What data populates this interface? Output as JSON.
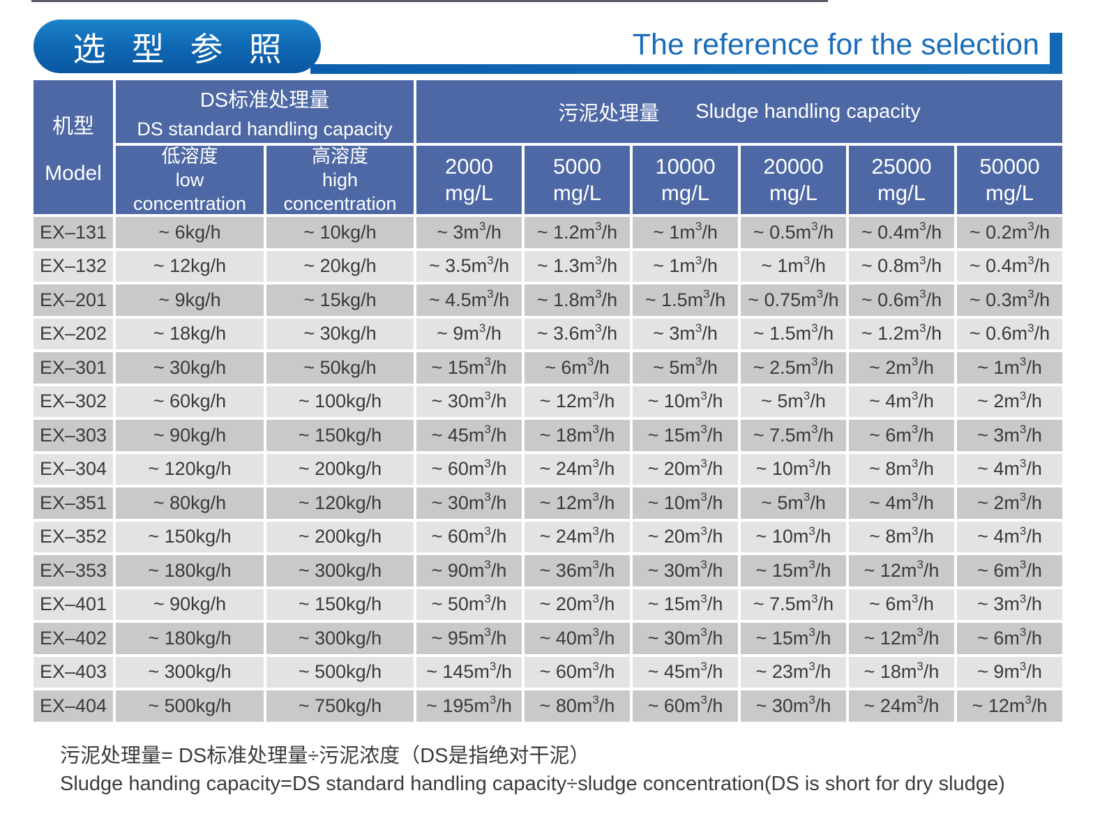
{
  "banner": {
    "title_zh": "选 型 参 照",
    "title_en": "The reference for the selection"
  },
  "table": {
    "model_header_zh": "机型",
    "model_header_en": "Model",
    "ds_group_zh": "DS标准处理量",
    "ds_group_en": "DS standard handling capacity",
    "sludge_group_zh": "污泥处理量",
    "sludge_group_en": "Sludge handling capacity",
    "ds_columns": [
      {
        "zh": "低溶度",
        "en": "low concentration"
      },
      {
        "zh": "高溶度",
        "en": "high concentration"
      }
    ],
    "mg_columns": [
      {
        "value": "2000",
        "unit": "mg/L"
      },
      {
        "value": "5000",
        "unit": "mg/L"
      },
      {
        "value": "10000",
        "unit": "mg/L"
      },
      {
        "value": "20000",
        "unit": "mg/L"
      },
      {
        "value": "25000",
        "unit": "mg/L"
      },
      {
        "value": "50000",
        "unit": "mg/L"
      }
    ],
    "rows": [
      {
        "model": "EX–131",
        "values": [
          "~ 6kg/h",
          "~ 10kg/h",
          "~ 3m³/h",
          "~ 1.2m³/h",
          "~ 1m³/h",
          "~ 0.5m³/h",
          "~ 0.4m³/h",
          "~ 0.2m³/h"
        ]
      },
      {
        "model": "EX–132",
        "values": [
          "~ 12kg/h",
          "~ 20kg/h",
          "~ 3.5m³/h",
          "~ 1.3m³/h",
          "~ 1m³/h",
          "~ 1m³/h",
          "~ 0.8m³/h",
          "~ 0.4m³/h"
        ]
      },
      {
        "model": "EX–201",
        "values": [
          "~ 9kg/h",
          "~ 15kg/h",
          "~ 4.5m³/h",
          "~ 1.8m³/h",
          "~ 1.5m³/h",
          "~ 0.75m³/h",
          "~ 0.6m³/h",
          "~ 0.3m³/h"
        ]
      },
      {
        "model": "EX–202",
        "values": [
          "~ 18kg/h",
          "~ 30kg/h",
          "~ 9m³/h",
          "~ 3.6m³/h",
          "~ 3m³/h",
          "~ 1.5m³/h",
          "~ 1.2m³/h",
          "~ 0.6m³/h"
        ]
      },
      {
        "model": "EX–301",
        "values": [
          "~ 30kg/h",
          "~ 50kg/h",
          "~ 15m³/h",
          "~ 6m³/h",
          "~ 5m³/h",
          "~ 2.5m³/h",
          "~ 2m³/h",
          "~ 1m³/h"
        ]
      },
      {
        "model": "EX–302",
        "values": [
          "~ 60kg/h",
          "~ 100kg/h",
          "~ 30m³/h",
          "~ 12m³/h",
          "~ 10m³/h",
          "~ 5m³/h",
          "~ 4m³/h",
          "~ 2m³/h"
        ]
      },
      {
        "model": "EX–303",
        "values": [
          "~ 90kg/h",
          "~ 150kg/h",
          "~ 45m³/h",
          "~ 18m³/h",
          "~ 15m³/h",
          "~ 7.5m³/h",
          "~ 6m³/h",
          "~ 3m³/h"
        ]
      },
      {
        "model": "EX–304",
        "values": [
          "~ 120kg/h",
          "~ 200kg/h",
          "~ 60m³/h",
          "~ 24m³/h",
          "~ 20m³/h",
          "~ 10m³/h",
          "~ 8m³/h",
          "~ 4m³/h"
        ]
      },
      {
        "model": "EX–351",
        "values": [
          "~ 80kg/h",
          "~ 120kg/h",
          "~ 30m³/h",
          "~ 12m³/h",
          "~ 10m³/h",
          "~ 5m³/h",
          "~ 4m³/h",
          "~ 2m³/h"
        ]
      },
      {
        "model": "EX–352",
        "values": [
          "~ 150kg/h",
          "~ 200kg/h",
          "~ 60m³/h",
          "~ 24m³/h",
          "~ 20m³/h",
          "~ 10m³/h",
          "~ 8m³/h",
          "~ 4m³/h"
        ]
      },
      {
        "model": "EX–353",
        "values": [
          "~ 180kg/h",
          "~ 300kg/h",
          "~ 90m³/h",
          "~ 36m³/h",
          "~ 30m³/h",
          "~ 15m³/h",
          "~ 12m³/h",
          "~ 6m³/h"
        ]
      },
      {
        "model": "EX–401",
        "values": [
          "~ 90kg/h",
          "~ 150kg/h",
          "~ 50m³/h",
          "~ 20m³/h",
          "~ 15m³/h",
          "~ 7.5m³/h",
          "~ 6m³/h",
          "~ 3m³/h"
        ]
      },
      {
        "model": "EX–402",
        "values": [
          "~ 180kg/h",
          "~ 300kg/h",
          "~ 95m³/h",
          "~ 40m³/h",
          "~ 30m³/h",
          "~ 15m³/h",
          "~ 12m³/h",
          "~ 6m³/h"
        ]
      },
      {
        "model": "EX–403",
        "values": [
          "~ 300kg/h",
          "~ 500kg/h",
          "~ 145m³/h",
          "~ 60m³/h",
          "~ 45m³/h",
          "~ 23m³/h",
          "~ 18m³/h",
          "~ 9m³/h"
        ]
      },
      {
        "model": "EX–404",
        "values": [
          "~ 500kg/h",
          "~ 750kg/h",
          "~ 195m³/h",
          "~ 80m³/h",
          "~ 60m³/h",
          "~ 30m³/h",
          "~ 24m³/h",
          "~ 12m³/h"
        ]
      }
    ]
  },
  "notes": {
    "line_zh": "污泥处理量= DS标准处理量÷污泥浓度（DS是指绝对干泥）",
    "line_en": "Sludge handing capacity=DS standard handling capacity÷sludge concentration(DS is short for dry sludge)"
  },
  "colors": {
    "accent_blue": "#1268b4",
    "title_blue": "#1a6db9",
    "header_cell_blue": "#4d68a4",
    "row_dark_gray": "#c9c9c9",
    "row_light_gray": "#e3e3e3",
    "text_dark": "#3a3a3a"
  }
}
